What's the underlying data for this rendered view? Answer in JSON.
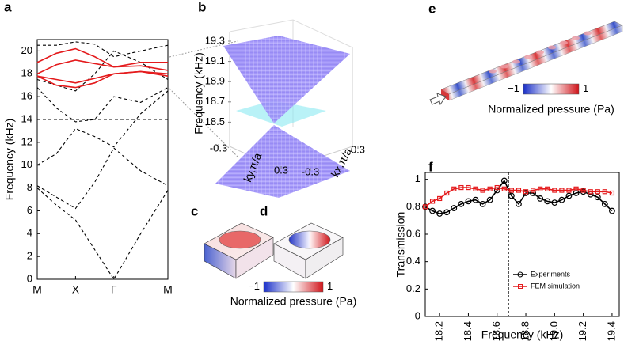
{
  "chart_data": [
    {
      "type": "line",
      "panel_label": "a",
      "ylabel": "Frequency (kHz)",
      "x": [
        0,
        0.5,
        1,
        1.5,
        2,
        2.7,
        3.41
      ],
      "xlim": [
        0,
        3.41
      ],
      "xticks": [
        {
          "value": 0,
          "label": "M"
        },
        {
          "value": 1,
          "label": "X"
        },
        {
          "value": 2,
          "label": "Γ"
        },
        {
          "value": 3.41,
          "label": "M"
        }
      ],
      "ylim": [
        0,
        21
      ],
      "yticks": [
        0,
        2,
        4,
        6,
        8,
        10,
        12,
        14,
        16,
        18,
        20
      ],
      "series": [
        {
          "color": "#000000",
          "dashed": true,
          "values": [
            8,
            6.5,
            5.2,
            2.6,
            0,
            4,
            7.8
          ]
        },
        {
          "color": "#000000",
          "dashed": true,
          "values": [
            8.2,
            7.2,
            6.2,
            8.5,
            11.5,
            9.5,
            8.2
          ]
        },
        {
          "color": "#000000",
          "dashed": true,
          "values": [
            14,
            14,
            14,
            14,
            14,
            14,
            14
          ]
        },
        {
          "color": "#000000",
          "dashed": true,
          "values": [
            10,
            11,
            13.2,
            12.5,
            11.6,
            14.5,
            16.5
          ]
        },
        {
          "color": "#000000",
          "dashed": true,
          "values": [
            16.8,
            15,
            13.8,
            14,
            16,
            15.5,
            16.8
          ]
        },
        {
          "color": "#000000",
          "dashed": true,
          "values": [
            17.5,
            17,
            16.5,
            18,
            20,
            19,
            17.5
          ]
        },
        {
          "color": "#000000",
          "dashed": true,
          "values": [
            20.5,
            20.5,
            20.8,
            20.6,
            19.5,
            20,
            20.5
          ]
        },
        {
          "color": "#e41a1c",
          "dashed": false,
          "values": [
            19,
            19.8,
            20.2,
            19.5,
            18.6,
            19,
            19
          ]
        },
        {
          "color": "#e41a1c",
          "dashed": false,
          "values": [
            18,
            18.8,
            19.2,
            18.9,
            18.6,
            18.7,
            18.3
          ]
        },
        {
          "color": "#e41a1c",
          "dashed": false,
          "values": [
            17.8,
            17.5,
            17.2,
            17.6,
            18,
            18.2,
            18
          ]
        },
        {
          "color": "#e41a1c",
          "dashed": false,
          "values": [
            17.8,
            17,
            16.8,
            17.2,
            18,
            18.2,
            17.8
          ]
        }
      ]
    },
    {
      "type": "surface",
      "panel_label": "b",
      "zlabel": "Frequency (kHz)",
      "xlabel": "kx,π/a",
      "ylabel": "ky,π/a",
      "zlim": [
        18.3,
        19.3
      ],
      "zticks": [
        18.5,
        18.7,
        18.9,
        19.1,
        19.3
      ],
      "xlim": [
        -0.3,
        0.3
      ],
      "xticks": [
        -0.3,
        0.3
      ],
      "ylim": [
        -0.3,
        0.3
      ],
      "yticks": [
        -0.3,
        0.3
      ]
    },
    {
      "type": "field",
      "panel_label": "c"
    },
    {
      "type": "field",
      "panel_label": "d"
    },
    {
      "type": "colorbar",
      "lim": [
        -1,
        1
      ],
      "ticks": [
        {
          "value": -1,
          "label": "−1"
        },
        1
      ],
      "label": "Normalized pressure (Pa)"
    },
    {
      "type": "field",
      "panel_label": "e"
    },
    {
      "type": "colorbar",
      "lim": [
        -1,
        1
      ],
      "ticks": [
        {
          "value": -1,
          "label": "−1"
        },
        1
      ],
      "label": "Normalized pressure (Pa)"
    },
    {
      "type": "line",
      "panel_label": "f",
      "xlabel": "Frequency (kHz)",
      "ylabel": "Transmission",
      "x": [
        18.1,
        18.15,
        18.2,
        18.25,
        18.3,
        18.35,
        18.4,
        18.45,
        18.5,
        18.55,
        18.6,
        18.65,
        18.7,
        18.75,
        18.8,
        18.85,
        18.9,
        18.95,
        19.0,
        19.05,
        19.1,
        19.15,
        19.2,
        19.25,
        19.3,
        19.35,
        19.4
      ],
      "xlim": [
        18.1,
        19.45
      ],
      "xticks": [
        18.2,
        18.4,
        18.6,
        18.8,
        {
          "value": 19,
          "label": "19.0"
        },
        19.2,
        19.4
      ],
      "xtick_rotation": 90,
      "ylim": [
        0,
        1.05
      ],
      "yticks": [
        0,
        0.2,
        0.4,
        0.6,
        0.8,
        1
      ],
      "vline": 18.68,
      "legend": "lower right",
      "series": [
        {
          "name": "Experiments",
          "color": "#000000",
          "marker": "circle",
          "values": [
            0.8,
            0.77,
            0.75,
            0.76,
            0.79,
            0.82,
            0.84,
            0.85,
            0.82,
            0.85,
            0.92,
            0.99,
            0.88,
            0.82,
            0.9,
            0.9,
            0.86,
            0.84,
            0.83,
            0.85,
            0.88,
            0.9,
            0.91,
            0.89,
            0.87,
            0.82,
            0.77
          ]
        },
        {
          "name": "FEM simulation",
          "color": "#e41a1c",
          "marker": "square",
          "values": [
            0.8,
            0.84,
            0.86,
            0.9,
            0.93,
            0.94,
            0.94,
            0.93,
            0.92,
            0.93,
            0.94,
            0.93,
            0.92,
            0.92,
            0.91,
            0.92,
            0.93,
            0.93,
            0.92,
            0.92,
            0.92,
            0.93,
            0.92,
            0.91,
            0.91,
            0.91,
            0.9
          ]
        }
      ]
    }
  ]
}
